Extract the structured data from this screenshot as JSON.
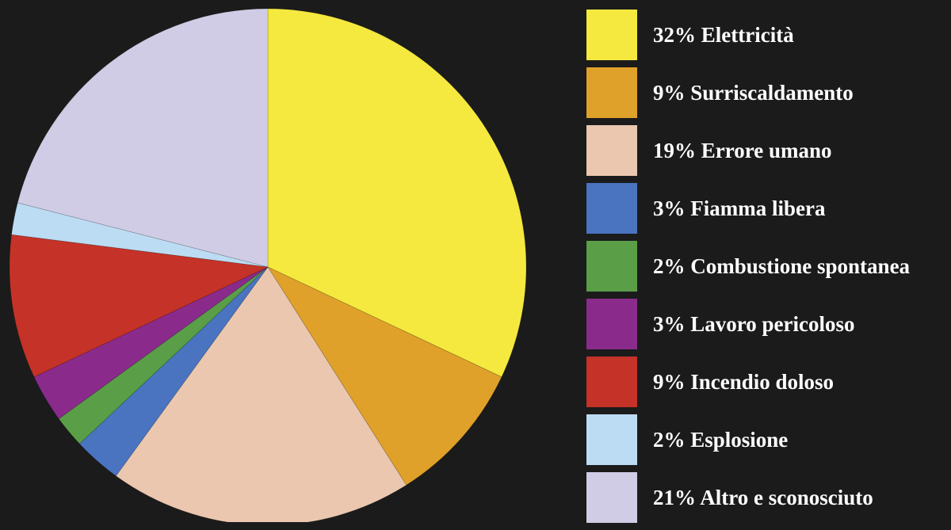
{
  "chart_data": {
    "type": "pie",
    "title": "",
    "start_angle": "top, clockwise",
    "slices": [
      {
        "label": "32% Elettricità",
        "value": 32,
        "color": "#f5e93f"
      },
      {
        "label": "9% Surriscaldamento",
        "value": 9,
        "color": "#e0a12a"
      },
      {
        "label": "19% Errore umano",
        "value": 19,
        "color": "#ebc7b0"
      },
      {
        "label": "3% Fiamma libera",
        "value": 3,
        "color": "#4a74c0"
      },
      {
        "label": "2% Combustione spontanea",
        "value": 2,
        "color": "#5a9e48"
      },
      {
        "label": "3% Lavoro pericoloso",
        "value": 3,
        "color": "#8a2b8c"
      },
      {
        "label": "9% Incendio doloso",
        "value": 9,
        "color": "#c53227"
      },
      {
        "label": "2% Esplosione",
        "value": 2,
        "color": "#bcdcf3"
      },
      {
        "label": "21% Altro e sconosciuto",
        "value": 21,
        "color": "#d0cce5"
      }
    ],
    "legend_position": "right"
  },
  "colors": {
    "background": "#1b1b1b",
    "legend_text": "#ffffff"
  }
}
